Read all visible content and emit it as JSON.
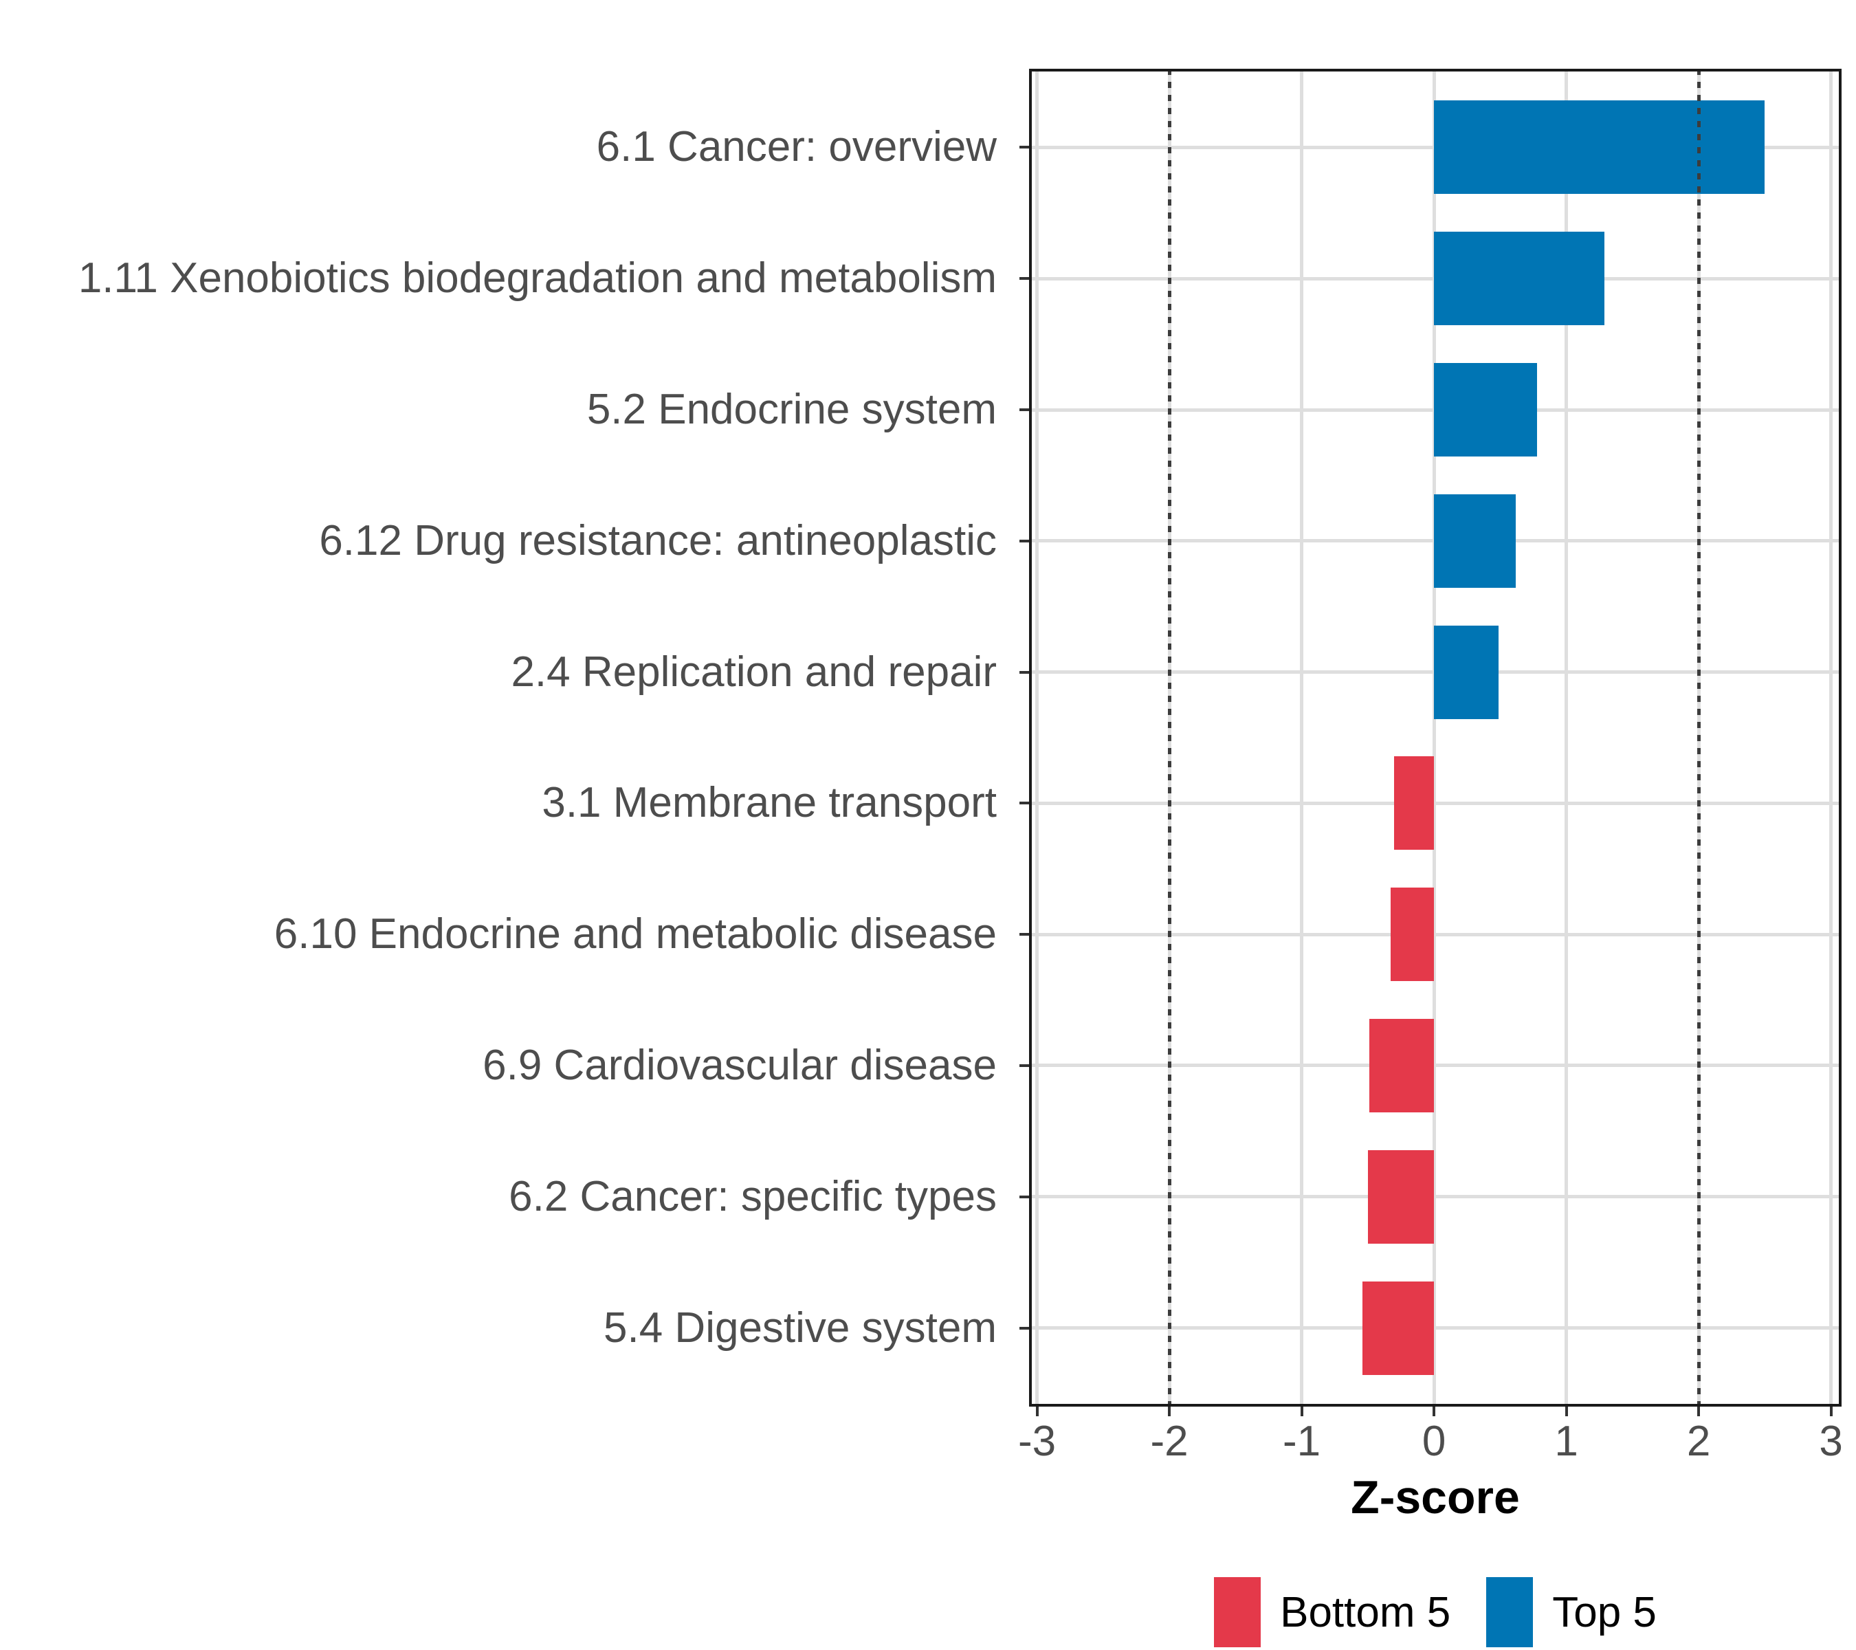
{
  "chart_data": {
    "type": "bar",
    "orientation": "horizontal",
    "title": "",
    "xlabel": "Z-score",
    "ylabel": "",
    "categories": [
      "6.1 Cancer: overview",
      "1.11 Xenobiotics biodegradation and metabolism",
      "5.2 Endocrine system",
      "6.12 Drug resistance: antineoplastic",
      "2.4 Replication and repair",
      "3.1 Membrane transport",
      "6.10 Endocrine and metabolic disease",
      "6.9 Cardiovascular disease",
      "6.2 Cancer: specific types",
      "5.4 Digestive system"
    ],
    "values": [
      2.5,
      1.29,
      0.78,
      0.62,
      0.49,
      -0.3,
      -0.33,
      -0.49,
      -0.5,
      -0.54
    ],
    "groups": [
      "Top 5",
      "Top 5",
      "Top 5",
      "Top 5",
      "Top 5",
      "Bottom 5",
      "Bottom 5",
      "Bottom 5",
      "Bottom 5",
      "Bottom 5"
    ],
    "xlim": [
      -3,
      3
    ],
    "xticks": [
      "-3",
      "-2",
      "-1",
      "0",
      "1",
      "2",
      "3"
    ],
    "xtick_values": [
      -3,
      -2,
      -1,
      0,
      1,
      2,
      3
    ],
    "reference_lines": [
      -2,
      2
    ],
    "grid": true,
    "legend_position": "bottom",
    "legend": [
      {
        "label": "Bottom 5",
        "color": "#E4394A"
      },
      {
        "label": "Top 5",
        "color": "#0075B4"
      }
    ]
  },
  "colors": {
    "top5_blue": "#0075B4",
    "bottom5_red": "#E4394A",
    "gridline": "#DEDEDE",
    "reference_line": "#3C3C3C",
    "axis_text": "#4D4D4D",
    "tick_mark": "#333333",
    "panel_border": "#1A1A1A",
    "background": "#FFFFFF"
  }
}
